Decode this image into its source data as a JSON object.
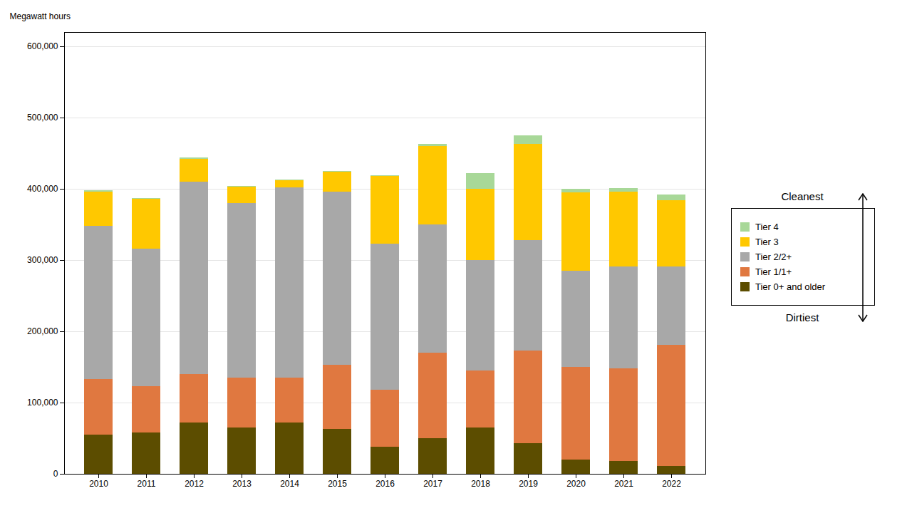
{
  "chart_data": {
    "type": "bar",
    "stacked": true,
    "categories": [
      "2010",
      "2011",
      "2012",
      "2013",
      "2014",
      "2015",
      "2016",
      "2017",
      "2018",
      "2019",
      "2020",
      "2021",
      "2022"
    ],
    "series": [
      {
        "name": "Tier 0+ and older",
        "color": "#5c4d00",
        "values": [
          55000,
          58000,
          72000,
          65000,
          72000,
          63000,
          38000,
          50000,
          65000,
          43000,
          20000,
          18000,
          11000
        ]
      },
      {
        "name": "Tier 1/1+",
        "color": "#e07840",
        "values": [
          78000,
          65000,
          68000,
          70000,
          63000,
          90000,
          80000,
          120000,
          80000,
          130000,
          130000,
          130000,
          170000
        ]
      },
      {
        "name": "Tier 2/2+",
        "color": "#a8a8a8",
        "values": [
          215000,
          193000,
          270000,
          245000,
          267000,
          243000,
          205000,
          180000,
          155000,
          155000,
          135000,
          143000,
          110000
        ]
      },
      {
        "name": "Tier 3",
        "color": "#ffc800",
        "values": [
          48000,
          70000,
          32000,
          23000,
          10000,
          28000,
          95000,
          110000,
          100000,
          135000,
          110000,
          105000,
          93000
        ]
      },
      {
        "name": "Tier 4",
        "color": "#a8d898",
        "values": [
          2000,
          1000,
          2000,
          1000,
          1000,
          1000,
          1000,
          3000,
          22000,
          12000,
          5000,
          5000,
          8000
        ]
      }
    ],
    "ylabel": "Megawatt hours",
    "ylim": [
      0,
      620000
    ],
    "yticks": [
      0,
      {
        "value": 100000,
        "label": "100,000"
      },
      {
        "value": 200000,
        "label": "200,000"
      },
      {
        "value": 300000,
        "label": "300,000"
      },
      {
        "value": 400000,
        "label": "400,000"
      },
      {
        "value": 500000,
        "label": "500,000"
      },
      {
        "value": 600000,
        "label": "600,000"
      }
    ],
    "grid": true,
    "legend": "right",
    "annotations": [
      {
        "text": "Cleanest"
      },
      {
        "text": "Dirtiest"
      }
    ]
  }
}
